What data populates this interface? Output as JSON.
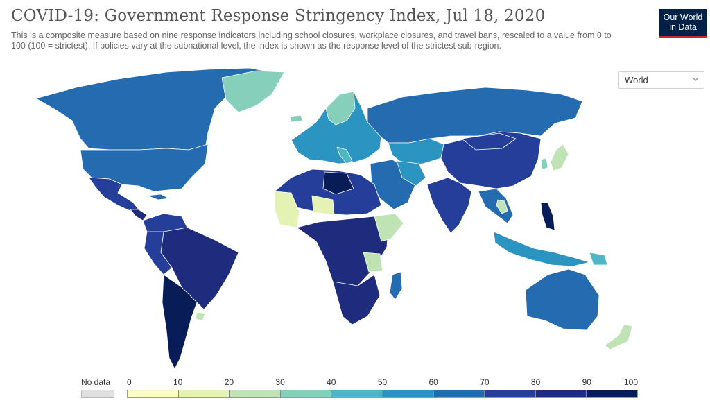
{
  "header": {
    "title": "COVID-19: Government Response Stringency Index, Jul 18, 2020",
    "subtitle": "This is a composite measure based on nine response indicators including school closures, workplace closures, and travel bans, rescaled to a value from 0 to 100 (100 = strictest). If policies vary at the subnational level, the index is shown as the response level of the strictest sub-region."
  },
  "logo": {
    "line1": "Our World",
    "line2": "in Data"
  },
  "region_select": {
    "value": "World"
  },
  "legend": {
    "no_data_label": "No data",
    "no_data_color": "#e0e0e0",
    "ticks": [
      "0",
      "10",
      "20",
      "30",
      "40",
      "50",
      "60",
      "70",
      "80",
      "90",
      "100"
    ],
    "colors": [
      "#fbfbc7",
      "#e4f3b4",
      "#bfe3b5",
      "#86cfba",
      "#4fb6c6",
      "#2c94c0",
      "#256bb0",
      "#253e99",
      "#1f2b7c",
      "#081d58"
    ]
  },
  "map_colors": {
    "ocean": "#ffffff",
    "land_default": "#256bb0",
    "border": "#ffffff"
  }
}
